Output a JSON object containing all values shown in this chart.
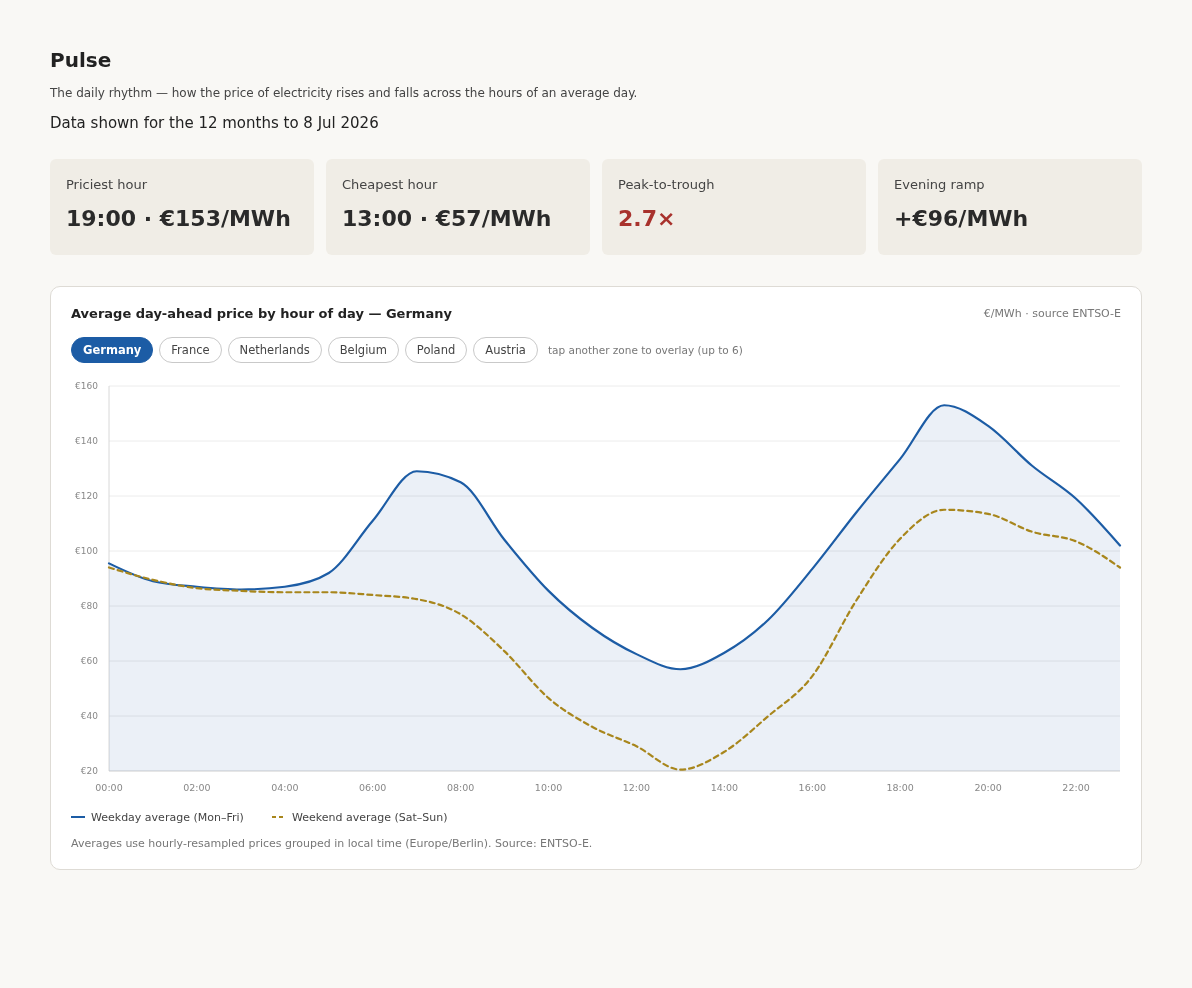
{
  "chart_data": [
    {
      "type": "other",
      "title": "Pulse",
      "subtitle": "The daily rhythm — how the price of electricity rises and falls across the hours of an average day.",
      "annotations": [
        "Data shown for the 12 months to 8 Jul 2026",
        "Priciest hour",
        "19:00 · €153/MWh",
        "Cheapest hour",
        "13:00 · €57/MWh",
        "Peak-to-trough",
        "2.7×",
        "Evening ramp",
        "+€96/MWh"
      ],
      "colors": [
        "#2a2a2a",
        "#2a2a2a",
        "#a8322d",
        "#2a2a2a"
      ]
    },
    {
      "type": "line",
      "title": "Average day-ahead price by hour of day — Germany",
      "annotations": [
        "€/MWh · source ENTSO-E",
        "Germany",
        "France",
        "Netherlands",
        "Belgium",
        "Poland",
        "Austria",
        "tap another zone to overlay (up to 6)",
        "Averages use hourly-resampled prices grouped in local time (Europe/Berlin). Source: ENTSO-E."
      ],
      "x": [
        0,
        1,
        2,
        3,
        4,
        5,
        6,
        7,
        8,
        9,
        10,
        11,
        12,
        13,
        14,
        15,
        16,
        17,
        18,
        19,
        20,
        21,
        22,
        23
      ],
      "series": [
        {
          "name": "Weekday average (Mon–Fri)",
          "type": "area",
          "color": "#1c5ca5",
          "values": [
            95.5,
            89,
            87,
            86,
            87,
            92,
            111,
            129,
            125,
            104,
            85.5,
            72,
            62.5,
            57,
            63,
            75,
            93.5,
            114,
            133.5,
            153,
            145.5,
            131,
            119,
            102
          ]
        },
        {
          "name": "Weekend average (Sat–Sun)",
          "type": "line",
          "line_style": "dashed",
          "color": "#a8861c",
          "values": [
            94,
            89.5,
            86.5,
            85.5,
            85,
            85,
            84,
            82.5,
            77,
            63.5,
            46.5,
            36,
            29,
            20.5,
            27,
            40,
            54.5,
            82,
            104.5,
            115,
            113.5,
            107,
            103.5,
            94
          ]
        }
      ],
      "xlim": [
        0,
        23
      ],
      "xticks": [
        {
          "value": 0,
          "label": "00:00"
        },
        {
          "value": 2,
          "label": "02:00"
        },
        {
          "value": 4,
          "label": "04:00"
        },
        {
          "value": 6,
          "label": "06:00"
        },
        {
          "value": 8,
          "label": "08:00"
        },
        {
          "value": 10,
          "label": "10:00"
        },
        {
          "value": 12,
          "label": "12:00"
        },
        {
          "value": 14,
          "label": "14:00"
        },
        {
          "value": 16,
          "label": "16:00"
        },
        {
          "value": 18,
          "label": "18:00"
        },
        {
          "value": 20,
          "label": "20:00"
        },
        {
          "value": 22,
          "label": "22:00"
        }
      ],
      "ylim": [
        20,
        160
      ],
      "yticks": [
        {
          "value": 20,
          "label": "€20"
        },
        {
          "value": 40,
          "label": "€40"
        },
        {
          "value": 60,
          "label": "€60"
        },
        {
          "value": 80,
          "label": "€80"
        },
        {
          "value": 100,
          "label": "€100"
        },
        {
          "value": 120,
          "label": "€120"
        },
        {
          "value": 140,
          "label": "€140"
        },
        {
          "value": 160,
          "label": "€160"
        }
      ],
      "grid": "y",
      "legend": "bottom",
      "marker": "none"
    }
  ]
}
